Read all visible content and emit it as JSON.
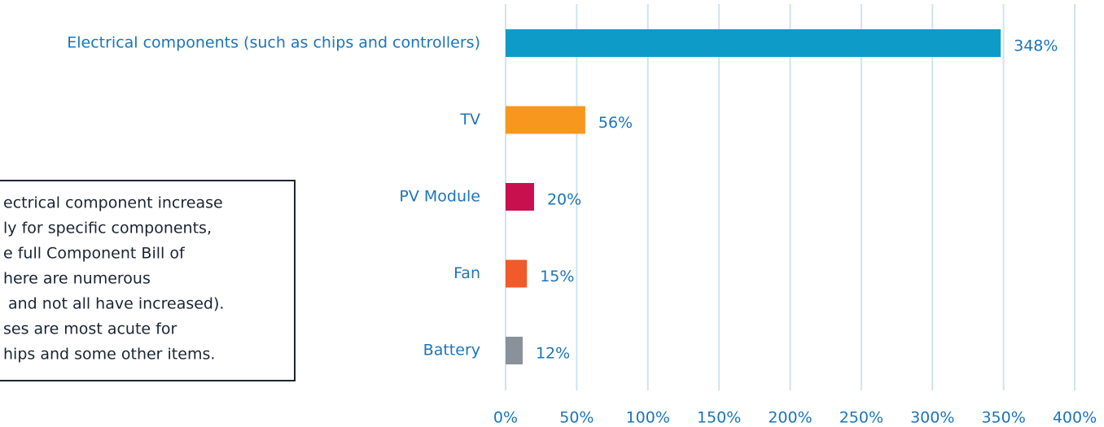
{
  "chart_data": {
    "type": "barh",
    "categories": [
      "Electrical components (such as chips and controllers)",
      "TV",
      "PV Module",
      "Fan",
      "Battery"
    ],
    "values": [
      348,
      56,
      20,
      15,
      12
    ],
    "value_labels": [
      "348%",
      "56%",
      "20%",
      "15%",
      "12%"
    ],
    "colors": [
      "#0e9bc7",
      "#f7971e",
      "#c8104f",
      "#f15a29",
      "#8a9199"
    ],
    "xlim": [
      0,
      400
    ],
    "xticks": [
      {
        "value": 0,
        "label": "0%"
      },
      {
        "value": 50,
        "label": "50%"
      },
      {
        "value": 100,
        "label": "100%"
      },
      {
        "value": 150,
        "label": "150%"
      },
      {
        "value": 200,
        "label": "200%"
      },
      {
        "value": 250,
        "label": "250%"
      },
      {
        "value": 300,
        "label": "300%"
      },
      {
        "value": 350,
        "label": "350%"
      },
      {
        "value": 400,
        "label": "400%"
      }
    ],
    "grid": true,
    "annotation": [
      "ectrical component increase",
      "ly for specific components,",
      "e full Component Bill of",
      "here are numerous",
      "and not all have increased).",
      "ses are most acute for",
      "hips and some other items."
    ]
  }
}
